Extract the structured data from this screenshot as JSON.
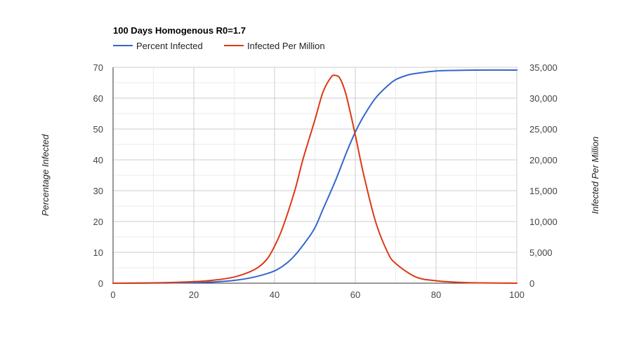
{
  "chart_data": {
    "type": "line",
    "title": "100 Days Homogenous R0=1.7",
    "xlabel": "",
    "ylabel_left": "Percentage Infected",
    "ylabel_right": "Infected Per Million",
    "legend_position": "top-left",
    "grid": true,
    "x_range": [
      0,
      100
    ],
    "y_left_range": [
      0,
      70
    ],
    "y_right_range": [
      0,
      35000
    ],
    "x_ticks": [
      "0",
      "20",
      "40",
      "60",
      "80",
      "100"
    ],
    "y_left_ticks": [
      "0",
      "10",
      "20",
      "30",
      "40",
      "50",
      "60",
      "70"
    ],
    "y_right_ticks": [
      "0",
      "5,000",
      "10,000",
      "15,000",
      "20,000",
      "25,000",
      "30,000",
      "35,000"
    ],
    "colors": {
      "percent_infected": "#3366cc",
      "infected_per_million": "#dc3912"
    },
    "series": [
      {
        "name": "Percent Infected",
        "axis": "left",
        "x": [
          0,
          10,
          20,
          25,
          30,
          35,
          40,
          43,
          45,
          48,
          50,
          52,
          55,
          58,
          60,
          62,
          65,
          68,
          70,
          73,
          75,
          80,
          85,
          90,
          100
        ],
        "values": [
          0,
          0.05,
          0.2,
          0.4,
          0.9,
          2,
          4,
          6.5,
          9,
          14,
          18,
          24,
          33,
          43,
          49,
          54,
          60,
          64,
          66,
          67.5,
          68,
          68.8,
          69,
          69.1,
          69.1
        ]
      },
      {
        "name": "Infected Per Million",
        "axis": "right",
        "x": [
          0,
          10,
          20,
          25,
          30,
          35,
          38,
          40,
          42,
          45,
          47,
          50,
          52,
          54,
          55,
          56,
          57,
          58,
          60,
          62,
          65,
          68,
          70,
          75,
          80,
          85,
          90,
          100
        ],
        "values": [
          0,
          50,
          250,
          500,
          1000,
          2200,
          3800,
          6000,
          9000,
          15000,
          20000,
          26500,
          31000,
          33400,
          33700,
          33400,
          32000,
          29800,
          24000,
          17800,
          10000,
          5000,
          3200,
          1000,
          400,
          150,
          50,
          0
        ]
      }
    ]
  }
}
